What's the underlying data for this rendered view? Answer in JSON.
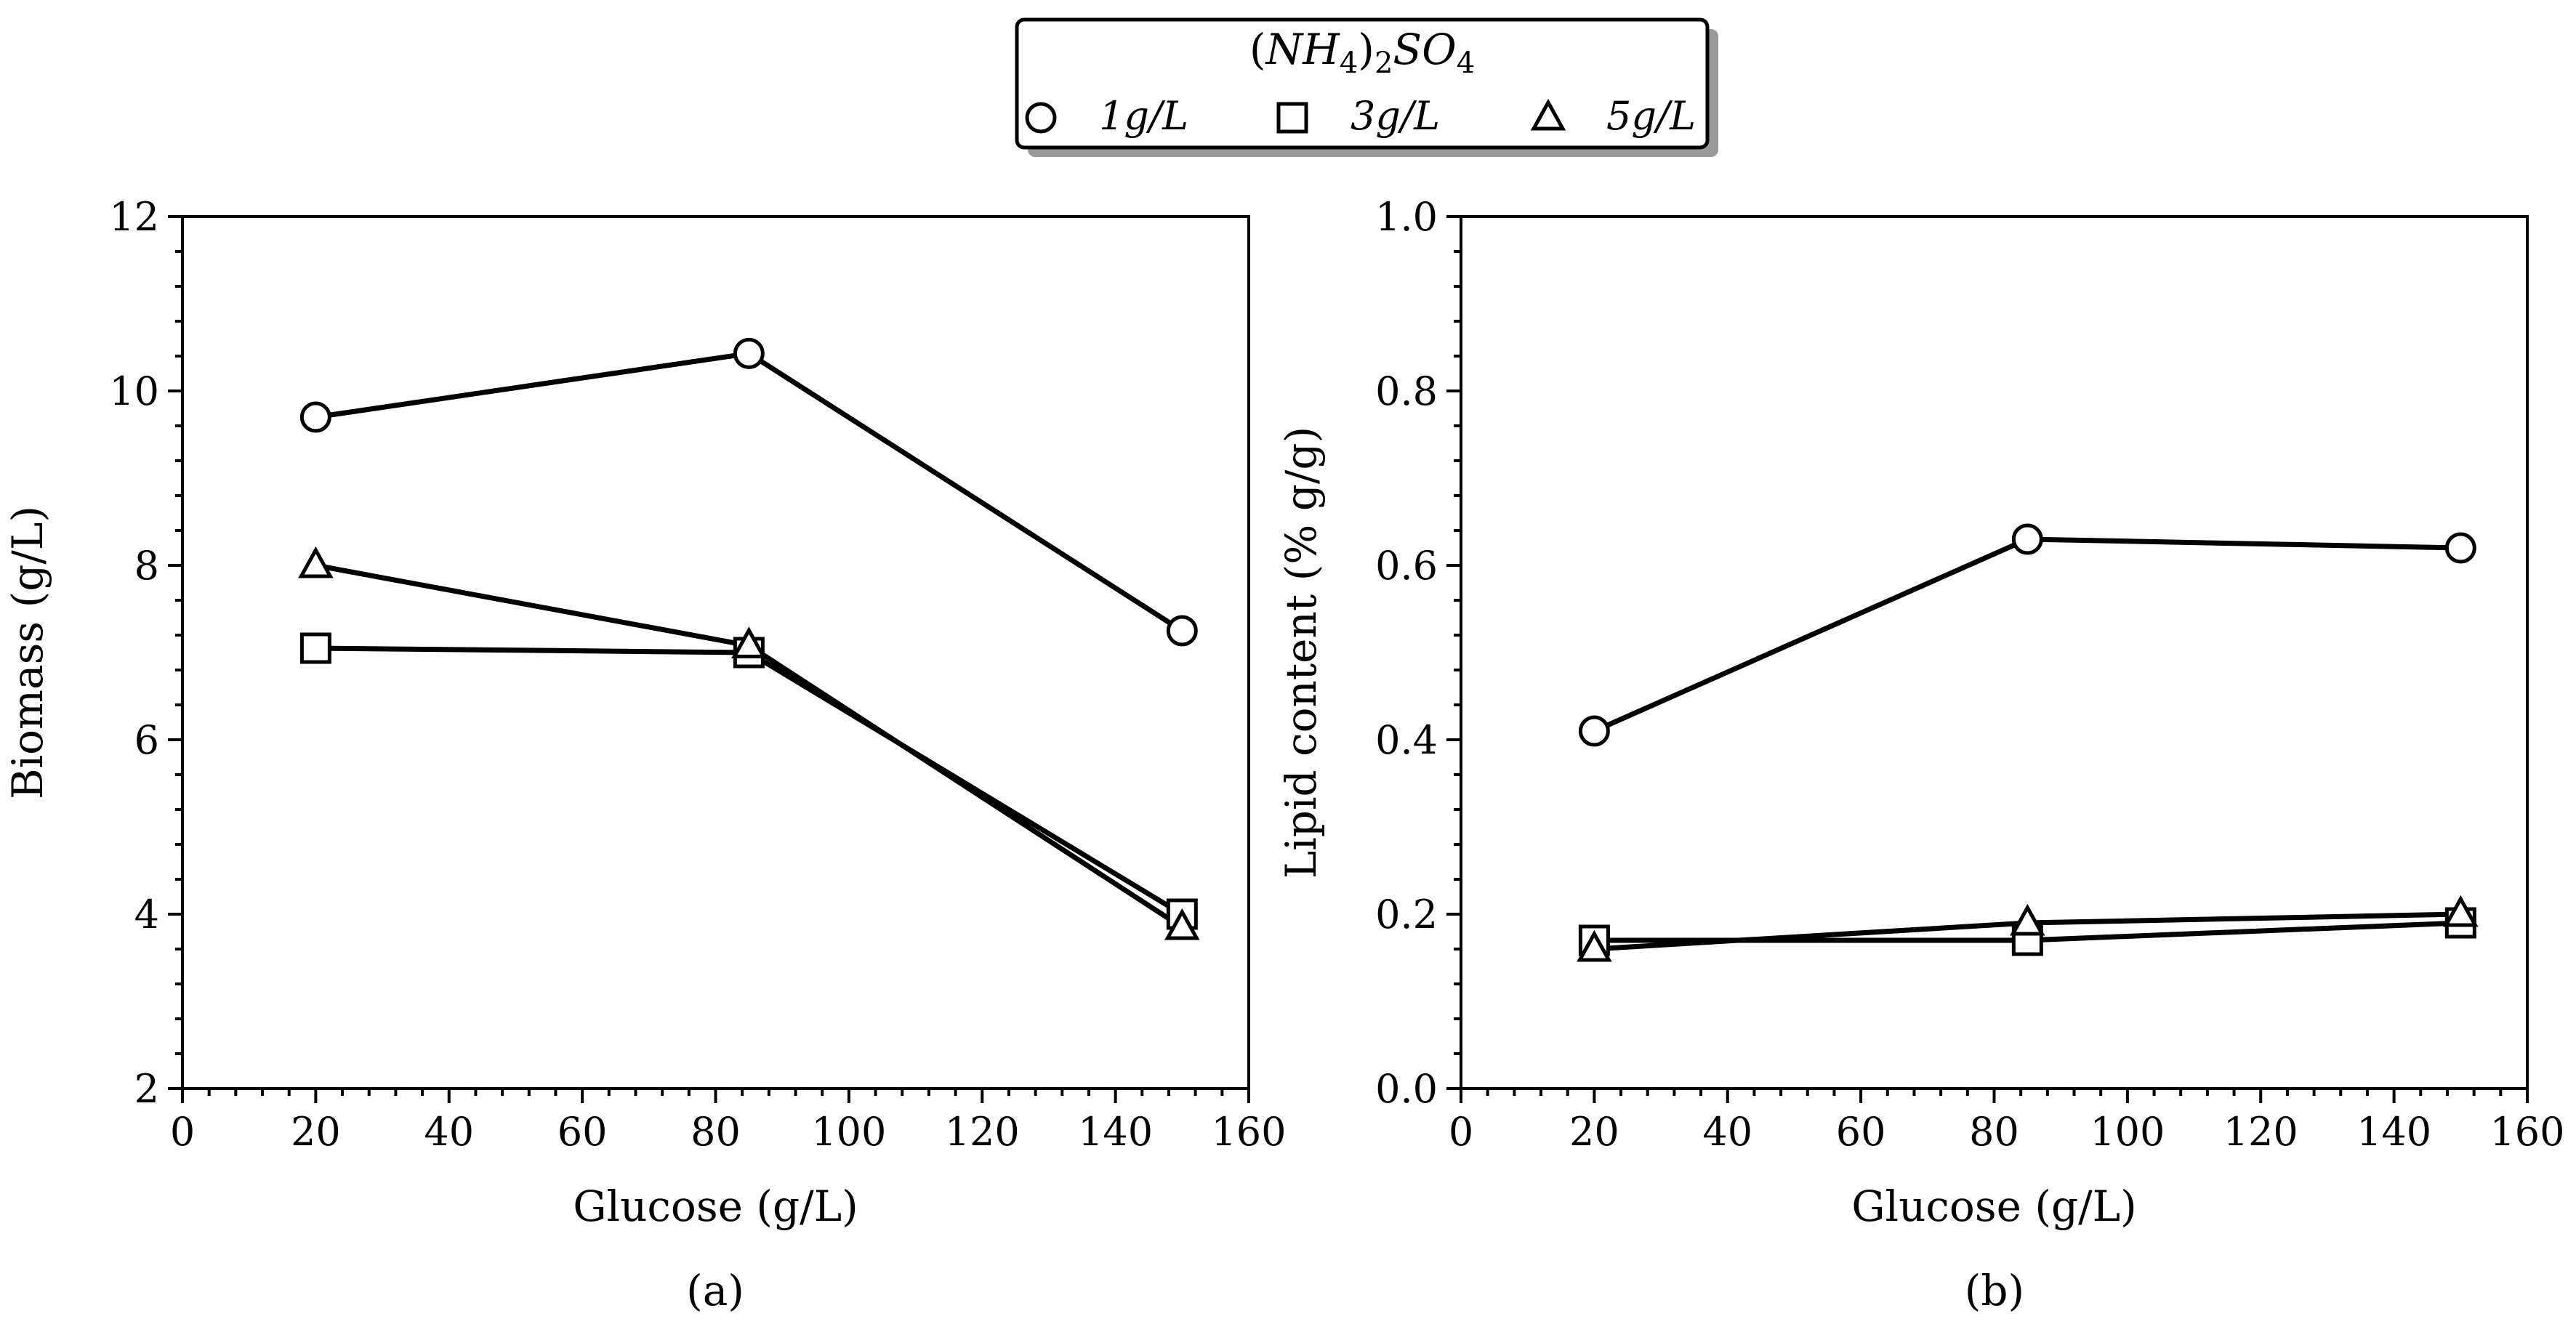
{
  "legend": {
    "title": "(NH4)2SO4",
    "title_parts": {
      "open": "(",
      "nh": "NH",
      "four_a": "4",
      "close": ")",
      "two": "2",
      "so": "SO",
      "four_b": "4"
    },
    "entries": [
      {
        "label": "1g/L",
        "marker": "circle"
      },
      {
        "label": "3g/L",
        "marker": "square"
      },
      {
        "label": "5g/L",
        "marker": "triangle"
      }
    ]
  },
  "chart_data": [
    {
      "type": "line",
      "panel_label": "(a)",
      "xlabel": "Glucose (g/L)",
      "ylabel": "Biomass (g/L)",
      "xlim": [
        0,
        160
      ],
      "ylim": [
        2,
        12
      ],
      "xticks": [
        0,
        20,
        40,
        60,
        80,
        100,
        120,
        140,
        160
      ],
      "yticks": [
        2,
        4,
        6,
        8,
        10,
        12
      ],
      "xtick_labels": [
        "0",
        "20",
        "40",
        "60",
        "80",
        "100",
        "120",
        "140",
        "160"
      ],
      "ytick_labels": [
        "2",
        "4",
        "6",
        "8",
        "10",
        "12"
      ],
      "x": [
        20,
        85,
        150
      ],
      "series": [
        {
          "name": "1g/L",
          "marker": "circle",
          "values": [
            9.7,
            10.43,
            7.25
          ]
        },
        {
          "name": "3g/L",
          "marker": "square",
          "values": [
            7.05,
            7.0,
            4.0
          ]
        },
        {
          "name": "5g/L",
          "marker": "triangle",
          "values": [
            8.0,
            7.08,
            3.85
          ]
        }
      ]
    },
    {
      "type": "line",
      "panel_label": "(b)",
      "xlabel": "Glucose (g/L)",
      "ylabel": "Lipid content (% g/g)",
      "xlim": [
        0,
        160
      ],
      "ylim": [
        0.0,
        1.0
      ],
      "xticks": [
        0,
        20,
        40,
        60,
        80,
        100,
        120,
        140,
        160
      ],
      "yticks": [
        0.0,
        0.2,
        0.4,
        0.6,
        0.8,
        1.0
      ],
      "xtick_labels": [
        "0",
        "20",
        "40",
        "60",
        "80",
        "100",
        "120",
        "140",
        "160"
      ],
      "ytick_labels": [
        "0.0",
        "0.2",
        "0.4",
        "0.6",
        "0.8",
        "1.0"
      ],
      "x": [
        20,
        85,
        150
      ],
      "series": [
        {
          "name": "1g/L",
          "marker": "circle",
          "values": [
            0.41,
            0.63,
            0.62
          ]
        },
        {
          "name": "3g/L",
          "marker": "square",
          "values": [
            0.17,
            0.17,
            0.19
          ]
        },
        {
          "name": "5g/L",
          "marker": "triangle",
          "values": [
            0.16,
            0.19,
            0.2
          ]
        }
      ]
    }
  ]
}
